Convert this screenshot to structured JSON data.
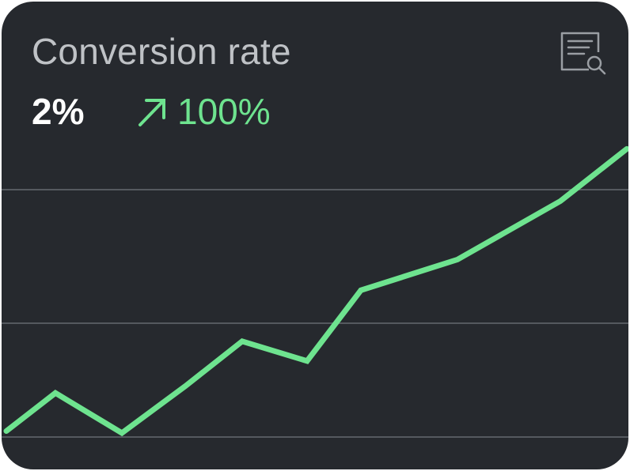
{
  "widget": {
    "title": "Conversion rate",
    "value": "2%",
    "change": "100%",
    "change_direction": "up",
    "report_icon": "report-search-icon"
  },
  "colors": {
    "background": "#26292e",
    "title": "#bfc2c6",
    "value": "#ffffff",
    "accent": "#6ee38f",
    "gridline": "#55595f"
  },
  "chart_data": {
    "type": "line",
    "gridlines": 3,
    "series": [
      {
        "values": [
          0.16,
          0.78,
          0.13,
          0.89,
          1.62,
          1.3,
          2.45,
          2.95,
          3.9,
          4.75
        ]
      }
    ],
    "ylim": [
      0,
      5.5
    ],
    "grid": true
  }
}
